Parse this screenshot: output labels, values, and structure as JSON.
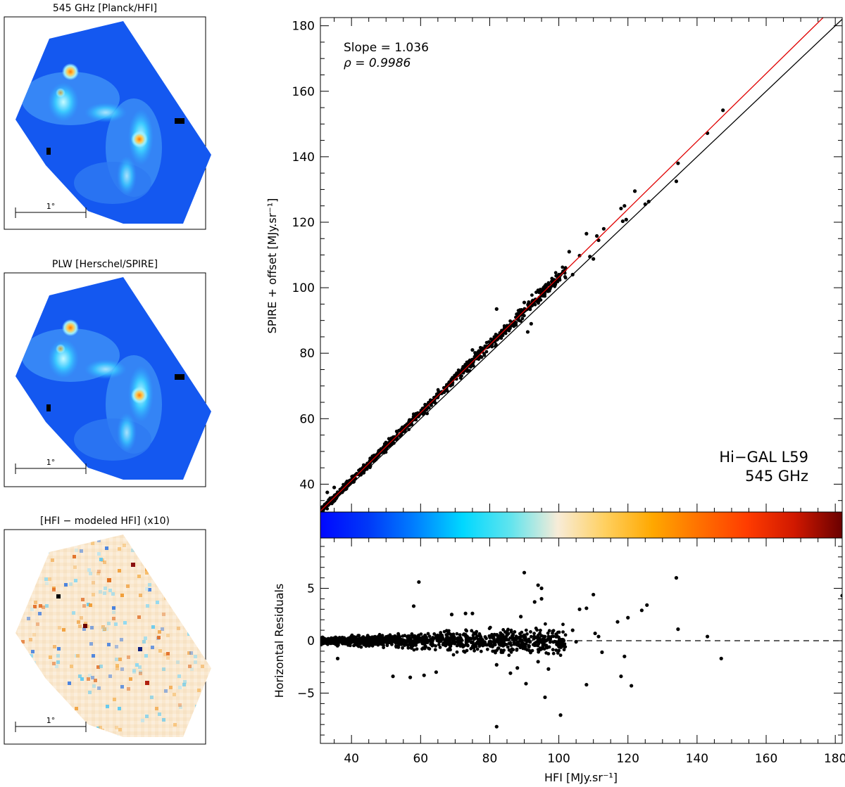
{
  "maps": [
    {
      "title": "545 GHz [Planck/HFI]",
      "kind": "intensity",
      "scale_label": "1°"
    },
    {
      "title": "PLW [Herschel/SPIRE]",
      "kind": "intensity",
      "scale_label": "1°"
    },
    {
      "title": "[HFI − modeled HFI] (x10)",
      "kind": "residual",
      "scale_label": "1°"
    }
  ],
  "colors": {
    "fit_line": "#e00000",
    "one_to_one": "#000000",
    "colorbar": [
      "#0008ff",
      "#0038f8",
      "#0080ff",
      "#00d8ff",
      "#60e4ee",
      "#f8ecd8",
      "#ffd060",
      "#ffa800",
      "#ff7000",
      "#ff3c00",
      "#d01800",
      "#6a0000"
    ]
  },
  "chart_data": [
    {
      "type": "scatter",
      "title": "",
      "xlabel": "",
      "ylabel": "SPIRE + offset [MJy.sr⁻¹]",
      "xlim": [
        31,
        182
      ],
      "ylim": [
        31.5,
        182.5
      ],
      "yticks": [
        40,
        60,
        80,
        100,
        120,
        140,
        160,
        180
      ],
      "xticks": [
        40,
        60,
        80,
        100,
        120,
        140,
        160,
        180
      ],
      "annotations": {
        "slope_label": "Slope =  1.036",
        "rho_label": "ρ  = 0.9986",
        "field": "Hi−GAL L59",
        "band": "545 GHz"
      },
      "fit": {
        "slope": 1.036,
        "rho": 0.9986
      },
      "lines": [
        {
          "name": "fit",
          "points": [
            [
              31,
              31.8
            ],
            [
              182,
              188.2
            ]
          ]
        },
        {
          "name": "one-to-one",
          "points": [
            [
              31,
              31
            ],
            [
              182,
              182
            ]
          ]
        }
      ],
      "highlighted_points": [
        [
          147.5,
          154.2
        ],
        [
          143,
          147.2
        ],
        [
          134.5,
          138.0
        ],
        [
          134.0,
          132.5
        ],
        [
          126,
          126.3
        ],
        [
          125,
          125.5
        ],
        [
          122,
          129.5
        ],
        [
          119,
          125.0
        ],
        [
          118,
          124.2
        ],
        [
          119.5,
          120.8
        ],
        [
          118.5,
          120.3
        ],
        [
          113,
          118.0
        ],
        [
          111,
          115.8
        ],
        [
          108,
          116.5
        ],
        [
          111.5,
          114.5
        ],
        [
          110,
          108.8
        ],
        [
          109,
          109.5
        ],
        [
          106,
          109.8
        ],
        [
          103,
          111.0
        ],
        [
          104,
          104.0
        ],
        [
          100,
          104.0
        ],
        [
          99,
          101.0
        ],
        [
          96,
          100.5
        ],
        [
          95,
          98.0
        ],
        [
          92,
          89.0
        ],
        [
          91,
          86.5
        ],
        [
          90,
          95.5
        ],
        [
          82,
          93.5
        ],
        [
          75,
          81.0
        ],
        [
          70,
          73.0
        ],
        [
          33,
          37.5
        ],
        [
          35,
          39.0
        ]
      ],
      "cloud": {
        "x_range": [
          31,
          102
        ],
        "points": 900
      }
    },
    {
      "type": "scatter",
      "title": "",
      "xlabel": "HFI [MJy.sr⁻¹]",
      "ylabel": "Horizontal Residuals",
      "xlim": [
        31,
        182
      ],
      "ylim": [
        -9.8,
        9.8
      ],
      "yticks": [
        -5,
        0,
        5
      ],
      "xticks": [
        40,
        60,
        80,
        100,
        120,
        140,
        160,
        180
      ],
      "reference_line": 0,
      "highlighted_points": [
        [
          59.5,
          5.6
        ],
        [
          90,
          6.5
        ],
        [
          94,
          5.3
        ],
        [
          95,
          5.0
        ],
        [
          95,
          4.0
        ],
        [
          93,
          3.7
        ],
        [
          110,
          4.4
        ],
        [
          124,
          2.9
        ],
        [
          125.5,
          3.4
        ],
        [
          120,
          2.2
        ],
        [
          117,
          1.8
        ],
        [
          134,
          6.0
        ],
        [
          134.5,
          1.1
        ],
        [
          143,
          0.4
        ],
        [
          147,
          -1.7
        ],
        [
          182,
          4.3
        ],
        [
          100.5,
          -7.1
        ],
        [
          82,
          -8.2
        ],
        [
          96,
          -5.4
        ],
        [
          90.5,
          -4.1
        ],
        [
          108,
          -4.2
        ],
        [
          118,
          -3.4
        ],
        [
          121,
          -4.3
        ],
        [
          119,
          -1.5
        ],
        [
          112.5,
          -1.1
        ],
        [
          111.5,
          0.4
        ],
        [
          110.5,
          0.7
        ],
        [
          106,
          3.0
        ],
        [
          108,
          3.1
        ],
        [
          104,
          1.0
        ],
        [
          105,
          -0.1
        ],
        [
          101,
          0.1
        ],
        [
          97,
          -2.7
        ],
        [
          86,
          -3.1
        ],
        [
          88,
          -2.6
        ],
        [
          82,
          -2.3
        ],
        [
          94,
          -2.0
        ],
        [
          64.5,
          -3.0
        ],
        [
          61,
          -3.3
        ],
        [
          57,
          -3.5
        ],
        [
          52,
          -3.4
        ],
        [
          36,
          -1.7
        ],
        [
          58,
          3.3
        ],
        [
          73,
          2.6
        ],
        [
          69,
          2.5
        ],
        [
          75,
          2.6
        ],
        [
          89,
          2.3
        ]
      ],
      "cloud": {
        "x_range": [
          31,
          102
        ],
        "points": 1100
      }
    }
  ],
  "colorbar": {
    "orientation": "horizontal",
    "label": ""
  }
}
